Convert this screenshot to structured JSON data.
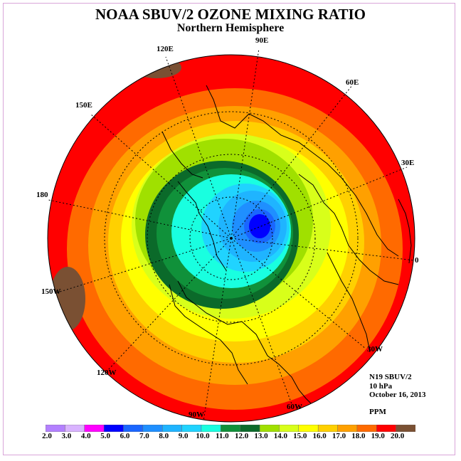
{
  "header": {
    "title": "NOAA SBUV/2 OZONE MIXING RATIO",
    "subtitle": "Northern Hemisphere"
  },
  "map": {
    "projection": "north-polar-stereographic",
    "longitude_labels": [
      "90E",
      "60E",
      "30E",
      "0",
      "30W",
      "60W",
      "90W",
      "120W",
      "150W",
      "180",
      "150E",
      "120E"
    ]
  },
  "info": {
    "instrument": "N19 SBUV/2",
    "level": "10 hPa",
    "date": "October 16, 2013",
    "units": "PPM"
  },
  "legend": {
    "ticks": [
      "2.0",
      "3.0",
      "4.0",
      "5.0",
      "6.0",
      "7.0",
      "8.0",
      "9.0",
      "10.0",
      "11.0",
      "12.0",
      "13.0",
      "14.0",
      "15.0",
      "16.0",
      "17.0",
      "18.0",
      "19.0",
      "20.0"
    ],
    "colors": [
      "#b380ff",
      "#d9b3ff",
      "#ff00ff",
      "#0000ff",
      "#1a66ff",
      "#1f8fff",
      "#1fb4ff",
      "#20d3ff",
      "#19ffe0",
      "#10913a",
      "#0b6a2a",
      "#a0e000",
      "#d8ff1a",
      "#ffff00",
      "#ffd000",
      "#ffa000",
      "#ff6a00",
      "#ff0000",
      "#7a5033"
    ]
  }
}
